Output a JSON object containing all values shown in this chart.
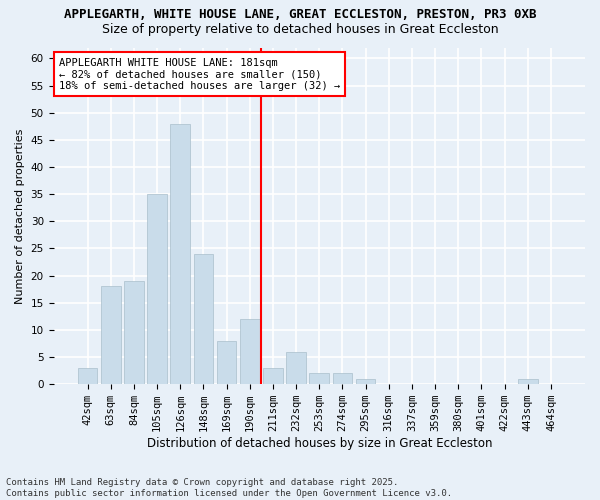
{
  "title1": "APPLEGARTH, WHITE HOUSE LANE, GREAT ECCLESTON, PRESTON, PR3 0XB",
  "title2": "Size of property relative to detached houses in Great Eccleston",
  "xlabel": "Distribution of detached houses by size in Great Eccleston",
  "ylabel": "Number of detached properties",
  "categories": [
    "42sqm",
    "63sqm",
    "84sqm",
    "105sqm",
    "126sqm",
    "148sqm",
    "169sqm",
    "190sqm",
    "211sqm",
    "232sqm",
    "253sqm",
    "274sqm",
    "295sqm",
    "316sqm",
    "337sqm",
    "359sqm",
    "380sqm",
    "401sqm",
    "422sqm",
    "443sqm",
    "464sqm"
  ],
  "values": [
    3,
    18,
    19,
    35,
    48,
    24,
    8,
    12,
    3,
    6,
    2,
    2,
    1,
    0,
    0,
    0,
    0,
    0,
    0,
    1,
    0
  ],
  "bar_color": "#c9dcea",
  "bar_edgecolor": "#aabfcc",
  "vline_color": "red",
  "vline_index": 7.5,
  "annotation_text": "APPLEGARTH WHITE HOUSE LANE: 181sqm\n← 82% of detached houses are smaller (150)\n18% of semi-detached houses are larger (32) →",
  "annotation_box_color": "white",
  "annotation_box_edgecolor": "red",
  "ylim": [
    0,
    62
  ],
  "yticks": [
    0,
    5,
    10,
    15,
    20,
    25,
    30,
    35,
    40,
    45,
    50,
    55,
    60
  ],
  "bg_color": "#e8f0f8",
  "grid_color": "white",
  "footer": "Contains HM Land Registry data © Crown copyright and database right 2025.\nContains public sector information licensed under the Open Government Licence v3.0.",
  "title1_fontsize": 9,
  "title2_fontsize": 9,
  "xlabel_fontsize": 8.5,
  "ylabel_fontsize": 8,
  "tick_fontsize": 7.5,
  "annotation_fontsize": 7.5,
  "footer_fontsize": 6.5
}
